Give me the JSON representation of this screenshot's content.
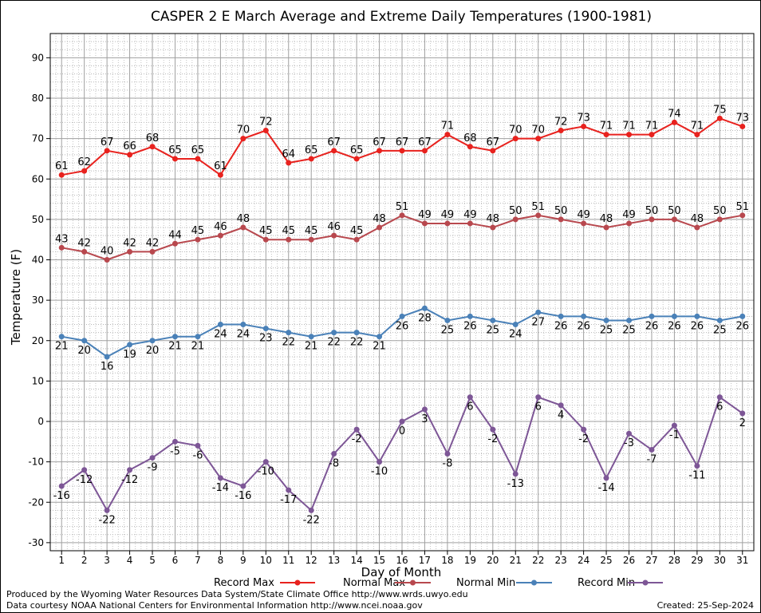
{
  "chart_data": {
    "type": "line",
    "title": "CASPER 2 E March Average and Extreme Daily Temperatures (1900-1981)",
    "xlabel": "Day of Month",
    "ylabel": "Temperature (F)",
    "xlim": [
      0.5,
      31.5
    ],
    "ylim": [
      -32,
      96
    ],
    "grid": true,
    "x": [
      1,
      2,
      3,
      4,
      5,
      6,
      7,
      8,
      9,
      10,
      11,
      12,
      13,
      14,
      15,
      16,
      17,
      18,
      19,
      20,
      21,
      22,
      23,
      24,
      25,
      26,
      27,
      28,
      29,
      30,
      31
    ],
    "y_ticks": [
      -30,
      -20,
      -10,
      0,
      10,
      20,
      30,
      40,
      50,
      60,
      70,
      80,
      90
    ],
    "series": [
      {
        "name": "Record Max",
        "color": "#e8221e",
        "label_position": "above",
        "values": [
          61,
          62,
          67,
          66,
          68,
          65,
          65,
          61,
          70,
          72,
          64,
          65,
          67,
          65,
          67,
          67,
          67,
          71,
          68,
          67,
          70,
          70,
          72,
          73,
          71,
          71,
          71,
          74,
          71,
          75,
          73
        ]
      },
      {
        "name": "Normal Max",
        "color": "#b8484e",
        "label_position": "above",
        "values": [
          43,
          42,
          40,
          42,
          42,
          44,
          45,
          46,
          48,
          45,
          45,
          45,
          46,
          45,
          48,
          51,
          49,
          49,
          49,
          48,
          50,
          51,
          50,
          49,
          48,
          49,
          50,
          50,
          48,
          50,
          51
        ]
      },
      {
        "name": "Normal Min",
        "color": "#4a81b8",
        "label_position": "below",
        "values": [
          21,
          20,
          16,
          19,
          20,
          21,
          21,
          24,
          24,
          23,
          22,
          21,
          22,
          22,
          21,
          26,
          28,
          25,
          26,
          25,
          24,
          27,
          26,
          26,
          25,
          25,
          26,
          26,
          26,
          25,
          26
        ]
      },
      {
        "name": "Record Min",
        "color": "#7d5696",
        "label_position": "below",
        "values": [
          -16,
          -12,
          -22,
          -12,
          -9,
          -5,
          -6,
          -14,
          -16,
          -10,
          -17,
          -22,
          -8,
          -2,
          -10,
          0,
          3,
          -8,
          6,
          -2,
          -13,
          6,
          4,
          -2,
          -14,
          -3,
          -7,
          -1,
          -11,
          6,
          2
        ]
      }
    ]
  },
  "footer": {
    "line1": "Produced by the Wyoming Water Resources Data System/State Climate Office http://www.wrds.uwyo.edu",
    "line2": "Data courtesy NOAA National Centers for Environmental Information http://www.ncei.noaa.gov",
    "created": "Created:  25-Sep-2024"
  }
}
